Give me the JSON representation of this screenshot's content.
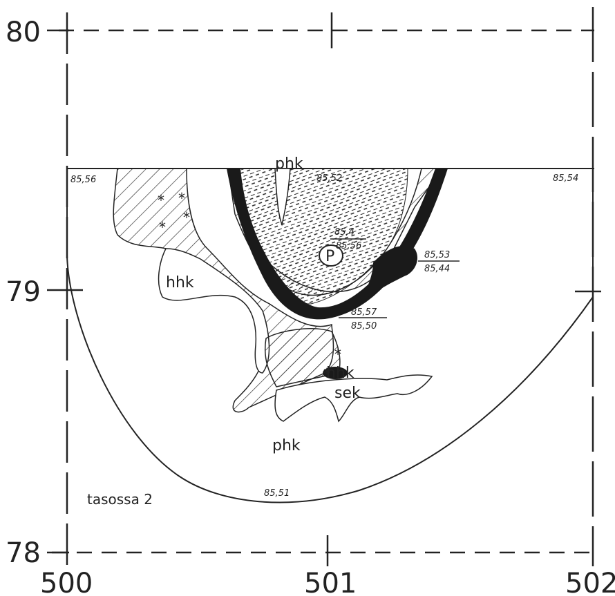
{
  "map": {
    "caption": "tasossa 2",
    "axes": {
      "x_labels": [
        "500",
        "501",
        "502"
      ],
      "y_labels": [
        "80",
        "79",
        "78"
      ]
    },
    "regions": {
      "phk_top": "phk",
      "hhk": "hhk",
      "hhk_lower": "hhk",
      "sek": "sek",
      "phk_bottom": "phk",
      "p_marker": "P"
    },
    "elevations": {
      "left_top": "85,56",
      "center_top": "85,52",
      "right_top": "85,54",
      "center_upper": "85,4",
      "center_lower": "85,56",
      "right_upper": "85,53",
      "right_lower": "85,44",
      "mid_upper": "85,57",
      "mid_lower": "85,50",
      "bottom": "85,51"
    }
  }
}
